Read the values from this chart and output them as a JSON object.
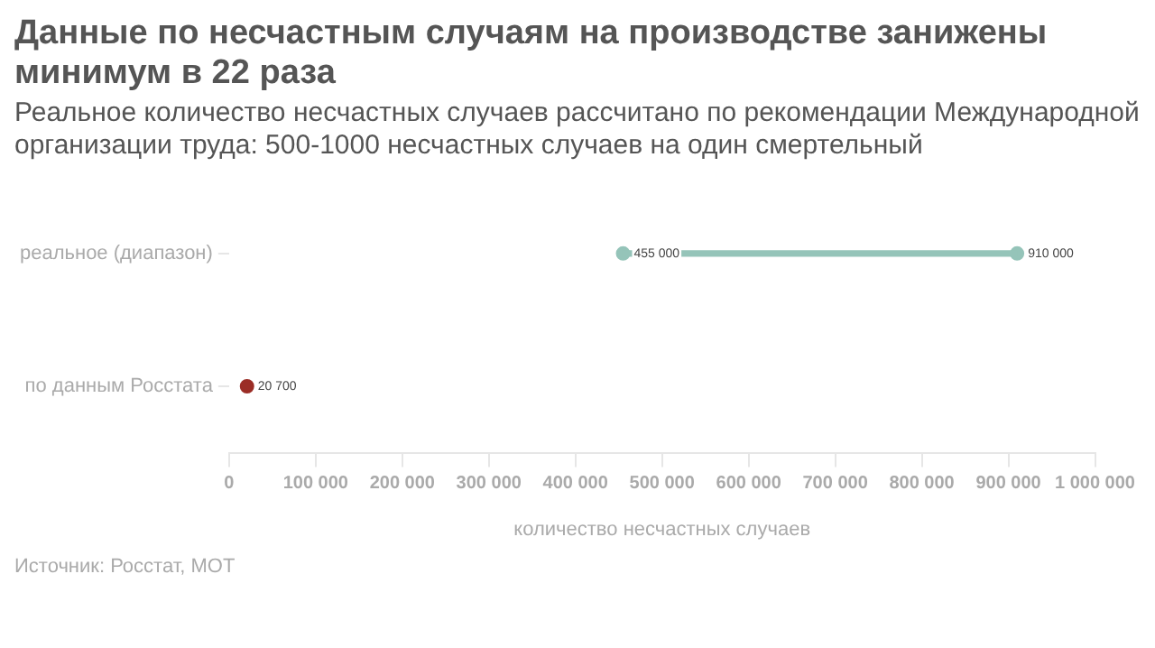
{
  "chart_data": {
    "type": "bar",
    "orientation": "horizontal",
    "title": "Данные по несчастным случаям на производстве занижены минимум в 22 раза",
    "subtitle": "Реальное количество несчастных случаев рассчитано по рекомендации Международной организации труда: 500-1000 несчастных случаев на один смертельный",
    "xlabel": "количество несчастных случаев",
    "categories": [
      "реальное (диапазон)",
      "по данным Росстата"
    ],
    "series": [
      {
        "type": "bar",
        "color": "#95c4b9",
        "base": [
          455000,
          null
        ],
        "values": [
          455000,
          null
        ]
      },
      {
        "type": "scatter",
        "colors": [
          "#95c4b9",
          "#9b2d26"
        ],
        "values": [
          455000,
          20700
        ],
        "value_labels": [
          "455 000",
          "20 700"
        ]
      },
      {
        "type": "scatter",
        "color": "#95c4b9",
        "values": [
          910000,
          null
        ],
        "value_labels": [
          "910 000",
          null
        ]
      }
    ],
    "xlim": [
      0,
      1000000
    ],
    "xticks": [
      0,
      {
        "value": 100000,
        "label": "100 000"
      },
      {
        "value": 200000,
        "label": "200 000"
      },
      {
        "value": 300000,
        "label": "300 000"
      },
      {
        "value": 400000,
        "label": "400 000"
      },
      {
        "value": 500000,
        "label": "500 000"
      },
      {
        "value": 600000,
        "label": "600 000"
      },
      {
        "value": 700000,
        "label": "700 000"
      },
      {
        "value": 800000,
        "label": "800 000"
      },
      {
        "value": 900000,
        "label": "900 000"
      },
      {
        "value": 1000000,
        "label": "1 000 000"
      }
    ],
    "grid": false,
    "legend": false,
    "marker": "circle",
    "annotations": [
      "Источник: Росстат, МОТ"
    ]
  }
}
